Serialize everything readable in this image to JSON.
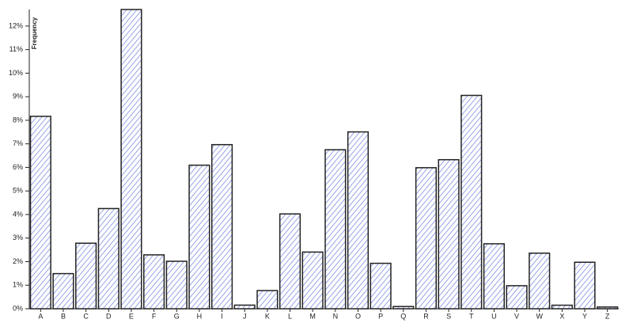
{
  "chart_data": {
    "type": "bar",
    "y_label": "Frequency",
    "categories": [
      "A",
      "B",
      "C",
      "D",
      "E",
      "F",
      "G",
      "H",
      "I",
      "J",
      "K",
      "L",
      "M",
      "N",
      "O",
      "P",
      "Q",
      "R",
      "S",
      "T",
      "U",
      "V",
      "W",
      "X",
      "Y",
      "Z"
    ],
    "values": [
      8.167,
      1.492,
      2.782,
      4.253,
      12.702,
      2.288,
      2.015,
      6.094,
      6.966,
      0.153,
      0.772,
      4.025,
      2.406,
      6.749,
      7.507,
      1.929,
      0.095,
      5.987,
      6.327,
      9.056,
      2.758,
      0.978,
      2.36,
      0.15,
      1.974,
      0.074
    ],
    "color": "#7b8ee0",
    "ylim": [
      0,
      12.702
    ],
    "yticks": [
      {
        "value": 0,
        "label": "0%"
      },
      {
        "value": 1,
        "label": "1%"
      },
      {
        "value": 2,
        "label": "2%"
      },
      {
        "value": 3,
        "label": "3%"
      },
      {
        "value": 4,
        "label": "4%"
      },
      {
        "value": 5,
        "label": "5%"
      },
      {
        "value": 6,
        "label": "6%"
      },
      {
        "value": 7,
        "label": "7%"
      },
      {
        "value": 8,
        "label": "8%"
      },
      {
        "value": 9,
        "label": "9%"
      },
      {
        "value": 10,
        "label": "10%"
      },
      {
        "value": 11,
        "label": "11%"
      },
      {
        "value": 12,
        "label": "12%"
      }
    ]
  }
}
